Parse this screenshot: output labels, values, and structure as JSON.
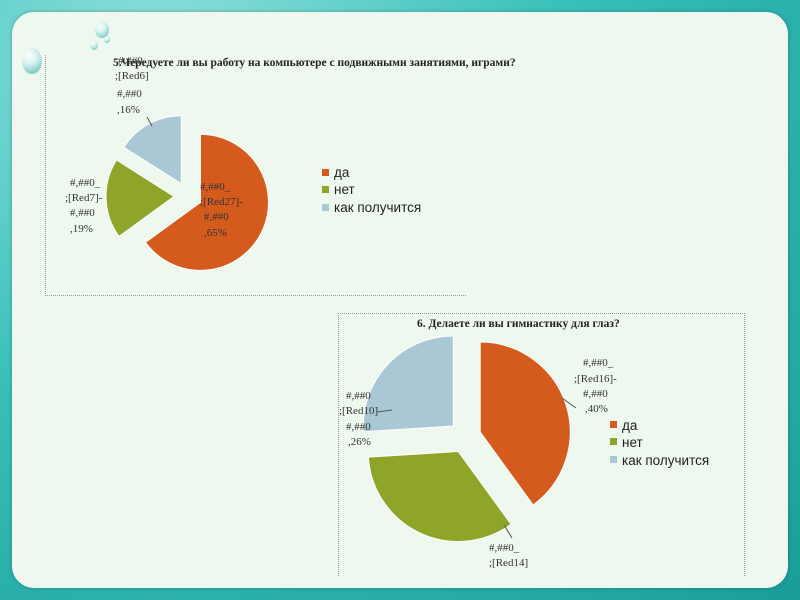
{
  "chart_data": [
    {
      "type": "pie",
      "title": "5.Чередуете ли вы работу на компьютере с подвижными занятиями, играми?",
      "categories": [
        "да",
        "нет",
        "как получится"
      ],
      "values": [
        65,
        19,
        16
      ],
      "colors": [
        "#d45a1e",
        "#8fa52a",
        "#a9c7d4"
      ],
      "data_labels": [
        [
          "#,##0_",
          ";[Red27]-",
          "#,##0",
          ",65%"
        ],
        [
          "#,##0_",
          ";[Red7]-",
          "#,##0",
          ",19%"
        ],
        [
          "#,##0",
          ";[Red6]",
          "#,##0",
          ",16%"
        ]
      ],
      "legend": "right",
      "exploded": true
    },
    {
      "type": "pie",
      "title": "6. Делаете ли вы гимнастику для глаз?",
      "categories": [
        "да",
        "нет",
        "как получится"
      ],
      "values": [
        40,
        34,
        26
      ],
      "colors": [
        "#d45a1e",
        "#8fa52a",
        "#a9c7d4"
      ],
      "data_labels": [
        [
          "#,##0_",
          ";[Red16]-",
          "#,##0",
          ",40%"
        ],
        [
          "#,##0_",
          ";[Red14]"
        ],
        [
          "#,##0",
          ";[Red10]",
          "#,##0",
          ",26%"
        ]
      ],
      "legend": "right",
      "exploded": true
    }
  ]
}
